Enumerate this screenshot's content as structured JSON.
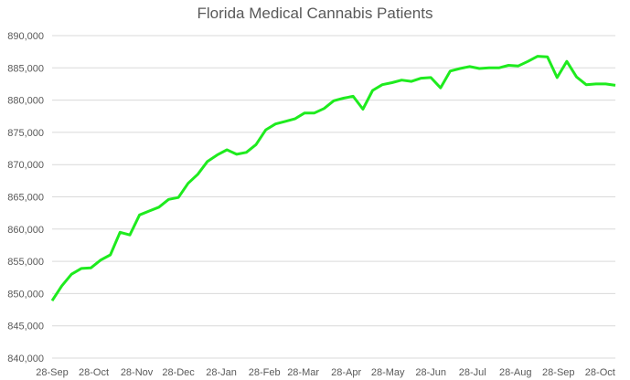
{
  "chart_data": {
    "type": "line",
    "title": "Florida Medical Cannabis Patients",
    "xlabel": "",
    "ylabel": "",
    "ylim": [
      840000,
      890000
    ],
    "y_ticks": [
      "840,000",
      "845,000",
      "850,000",
      "855,000",
      "860,000",
      "865,000",
      "870,000",
      "875,000",
      "880,000",
      "885,000",
      "890,000"
    ],
    "x_ticks": [
      "28-Sep",
      "28-Oct",
      "28-Nov",
      "28-Dec",
      "28-Jan",
      "28-Feb",
      "28-Mar",
      "28-Apr",
      "28-May",
      "28-Jun",
      "28-Jul",
      "28-Aug",
      "28-Sep",
      "28-Oct"
    ],
    "grid": "horizontal",
    "legend": "none",
    "line_color": "#1EEB1E",
    "grid_color": "#D9D9D9",
    "series": [
      {
        "x": [
          "28-Sep",
          "5-Oct",
          "12-Oct",
          "19-Oct",
          "26-Oct",
          "2-Nov",
          "9-Nov",
          "16-Nov",
          "23-Nov",
          "30-Nov",
          "7-Dec",
          "14-Dec",
          "21-Dec",
          "28-Dec",
          "4-Jan",
          "11-Jan",
          "18-Jan",
          "25-Jan",
          "1-Feb",
          "8-Feb",
          "15-Feb",
          "22-Feb",
          "1-Mar",
          "8-Mar",
          "15-Mar",
          "22-Mar",
          "29-Mar",
          "5-Apr",
          "12-Apr",
          "19-Apr",
          "26-Apr",
          "3-May",
          "10-May",
          "17-May",
          "24-May",
          "31-May",
          "7-Jun",
          "14-Jun",
          "21-Jun",
          "28-Jun",
          "5-Jul",
          "12-Jul",
          "19-Jul",
          "26-Jul",
          "2-Aug",
          "9-Aug",
          "16-Aug",
          "23-Aug",
          "30-Aug",
          "6-Sep",
          "13-Sep",
          "20-Sep",
          "27-Sep",
          "4-Oct",
          "11-Oct",
          "18-Oct",
          "25-Oct",
          "1-Nov",
          "8-Nov"
        ],
        "values": [
          848900,
          851200,
          853000,
          853900,
          854000,
          855200,
          856000,
          859500,
          859100,
          862200,
          862800,
          863400,
          864600,
          864900,
          867100,
          868500,
          870500,
          871500,
          872300,
          871600,
          871900,
          873100,
          875400,
          876300,
          876700,
          877100,
          878000,
          878000,
          878700,
          879900,
          880300,
          880600,
          878600,
          881500,
          882400,
          882700,
          883100,
          882900,
          883400,
          883500,
          881900,
          884500,
          884900,
          885200,
          884900,
          885000,
          885000,
          885400,
          885300,
          886000,
          886800,
          886700,
          883500,
          886000,
          883600,
          882400,
          882500,
          882500,
          882300
        ]
      }
    ]
  }
}
